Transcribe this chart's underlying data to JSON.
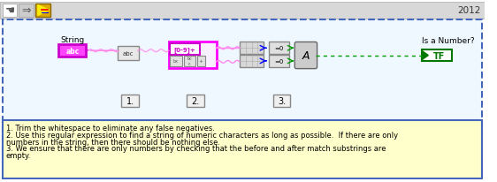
{
  "title_year": "2012",
  "outer_bg": "#ffffff",
  "toolbar_bg": "#d8d8d8",
  "diagram_bg": "#f0f8ff",
  "note_bg": "#ffffcc",
  "note_border": "#4466bb",
  "diagram_border_color": "#4466bb",
  "string_label": "String",
  "string_control_color": "#ff00ff",
  "string_control_text": "abc",
  "trim_text": "abc",
  "regex_box_border": "#ff00ff",
  "regex_text": "[0-9]+",
  "output_label": "Is a Number?",
  "output_text": "TF",
  "output_border_color": "#007700",
  "output_text_color": "#007700",
  "label1": "1.",
  "label2": "2.",
  "label3": "3.",
  "note_line1": "1. Trim the whitespace to eliminate any false negatives.",
  "note_line2": "2. Use this regular expression to find a string of numeric characters as long as possible.  If there are only",
  "note_line3": "numbers in the string, then there should be nothing else.",
  "note_line4": "3. We ensure that there are only numbers by checking that the before and after match substrings are",
  "note_line5": "empty.",
  "wire_pink": "#ff88ee",
  "wire_green": "#009900",
  "wire_dotted": "#009900",
  "background_color": "#ffffff"
}
